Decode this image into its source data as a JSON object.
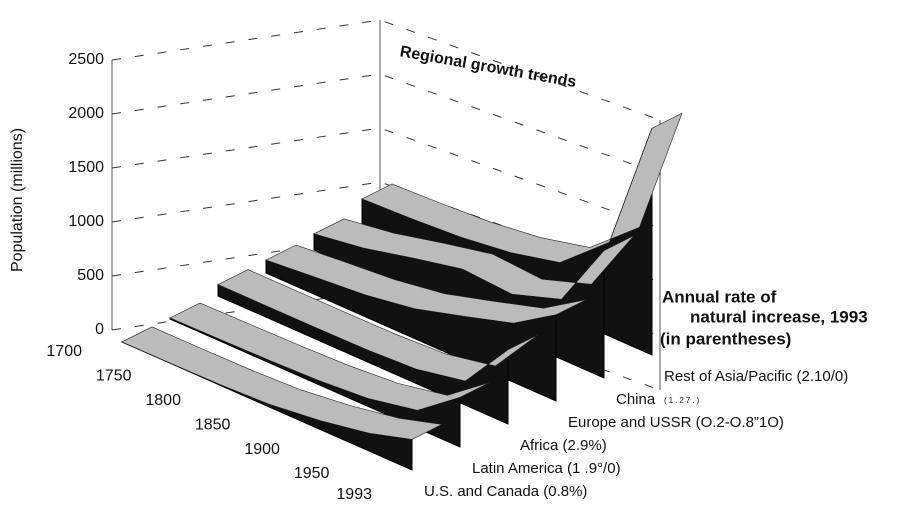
{
  "chart_data": {
    "type": "ribbon3d",
    "title": "Regional growth trends",
    "y_label": "Population (millions)",
    "legend_title": [
      "Annual rate of",
      "natural increase, 1993",
      "(in parentheses)"
    ],
    "categories": [
      1700,
      1750,
      1800,
      1850,
      1900,
      1950,
      1993
    ],
    "ylim": [
      0,
      2500
    ],
    "yticks": [
      0,
      500,
      1000,
      1500,
      2000,
      2500
    ],
    "grid": true,
    "series": [
      {
        "name": "U.S. and Canada (0.8%)",
        "color": "#111111",
        "values": [
          1,
          2,
          7,
          26,
          82,
          166,
          283
        ]
      },
      {
        "name": "Latin America (1 .9°/0)",
        "color": "#111111",
        "values": [
          10,
          16,
          24,
          38,
          74,
          166,
          460
        ]
      },
      {
        "name": "Africa (2.9%)",
        "color": "#111111",
        "values": [
          106,
          106,
          107,
          111,
          133,
          224,
          688
        ]
      },
      {
        "name": "Europe and USSR (O.2-O.8”1O)",
        "color": "#111111",
        "values": [
          120,
          163,
          203,
          276,
          408,
          547,
          799
        ]
      },
      {
        "name": "China",
        "color": "#111111",
        "values": [
          150,
          220,
          330,
          430,
          400,
          555,
          1180
        ]
      },
      {
        "name": "Rest of Asia/Pacific (2.10/0)",
        "color": "#111111",
        "values": [
          260,
          280,
          310,
          370,
          480,
          870,
          2100
        ]
      }
    ],
    "china_rate": "(1.27.)"
  }
}
